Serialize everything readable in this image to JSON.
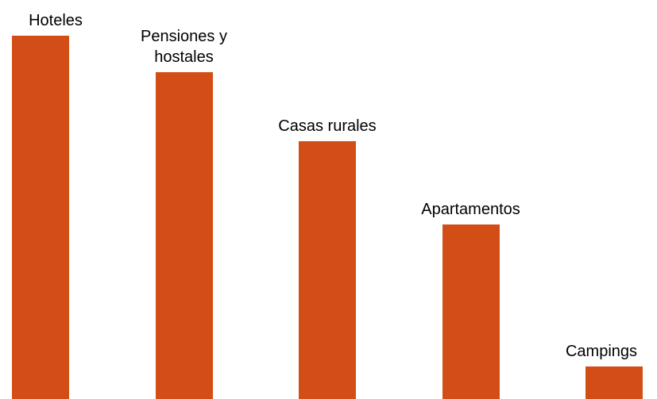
{
  "chart_data": {
    "type": "bar",
    "categories": [
      "Hoteles",
      "Pensiones y hostales",
      "Casas rurales",
      "Apartamentos",
      "Campings"
    ],
    "values": [
      100,
      90,
      71,
      48,
      9
    ],
    "color": "#d34e17",
    "ylim": [
      0,
      100
    ]
  }
}
